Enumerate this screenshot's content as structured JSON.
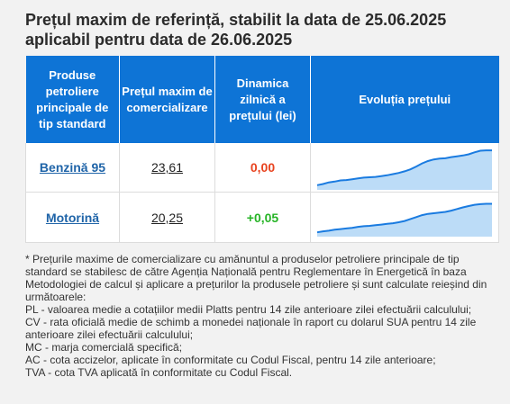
{
  "title": {
    "line1": "Prețul maxim de referință, stabilit la data de 25.06.2025",
    "line2": "aplicabil pentru data de 26.06.2025"
  },
  "table": {
    "headers": [
      "Produse petroliere principale de tip standard",
      "Prețul maxim de comercializare",
      "Dinamica zilnică a prețului (lei)",
      "Evoluția prețului"
    ],
    "rows": [
      {
        "product": "Benzină 95",
        "price": "23,61",
        "dynamic": "0,00",
        "dynamic_color": "#e8431f",
        "trend": [
          0.05,
          0.08,
          0.12,
          0.14,
          0.17,
          0.18,
          0.2,
          0.22,
          0.24,
          0.25,
          0.26,
          0.28,
          0.3,
          0.33,
          0.36,
          0.4,
          0.45,
          0.52,
          0.6,
          0.66,
          0.7,
          0.72,
          0.73,
          0.76,
          0.78,
          0.8,
          0.83,
          0.88,
          0.92,
          0.93,
          0.93
        ]
      },
      {
        "product": "Motorină",
        "price": "20,25",
        "dynamic": "+0,05",
        "dynamic_color": "#27b427",
        "trend": [
          0.05,
          0.08,
          0.1,
          0.13,
          0.15,
          0.17,
          0.19,
          0.22,
          0.24,
          0.25,
          0.27,
          0.29,
          0.31,
          0.33,
          0.36,
          0.4,
          0.46,
          0.52,
          0.58,
          0.62,
          0.64,
          0.66,
          0.68,
          0.72,
          0.77,
          0.82,
          0.86,
          0.9,
          0.92,
          0.93,
          0.93
        ]
      }
    ]
  },
  "notes": [
    "* Prețurile maxime de comercializare cu amănuntul a produselor petroliere principale de tip standard se stabilesc de către Agenția Națională pentru Reglementare în Energetică în baza Metodologiei de calcul și aplicare a prețurilor la produsele petroliere și sunt calculate reieșind din următoarele:",
    "PL - valoarea medie a cotațiilor medii Platts pentru 14 zile anterioare zilei efectuării calculului;",
    "CV - rata oficială medie de schimb a monedei naționale în raport cu dolarul SUA pentru 14 zile anterioare zilei efectuării calculului;",
    "MC - marja comercială specifică;",
    "AC - cota accizelor, aplicate în conformitate cu Codul Fiscal, pentru 14 zile anterioare;",
    "TVA - cota TVA aplicată în conformitate cu Codul Fiscal."
  ],
  "colors": {
    "header_bg": "#0e74d6",
    "spark_line": "#1a7be0",
    "spark_fill": "#bcdcf7"
  }
}
